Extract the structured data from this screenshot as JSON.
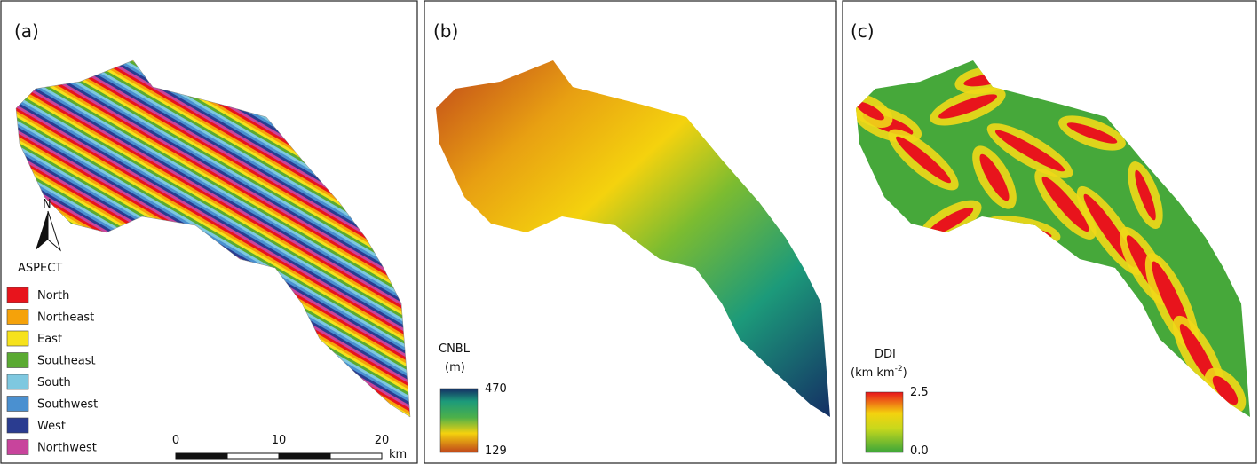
{
  "panels": [
    {
      "label": "(a)",
      "north": "N",
      "legend_title": "ASPECT",
      "legend": [
        {
          "label": "North",
          "color": "#e8141c"
        },
        {
          "label": "Northeast",
          "color": "#f5a20a"
        },
        {
          "label": "East",
          "color": "#f6e21c"
        },
        {
          "label": "Southeast",
          "color": "#5aaa32"
        },
        {
          "label": "South",
          "color": "#7ec8e0"
        },
        {
          "label": "Southwest",
          "color": "#4a90d0"
        },
        {
          "label": "West",
          "color": "#2a3c90"
        },
        {
          "label": "Northwest",
          "color": "#c8449c"
        }
      ],
      "scale": {
        "ticks": [
          0,
          10,
          20
        ],
        "unit": "km"
      }
    },
    {
      "label": "(b)",
      "colorbar_title": "CNBL",
      "colorbar_unit": "(m)",
      "max": 470,
      "min": 129
    },
    {
      "label": "(c)",
      "colorbar_title": "DDI",
      "unit_base": "(km km",
      "unit_exp": "-2",
      "unit_close": ")",
      "max": 2.5,
      "min": "0.0"
    }
  ]
}
